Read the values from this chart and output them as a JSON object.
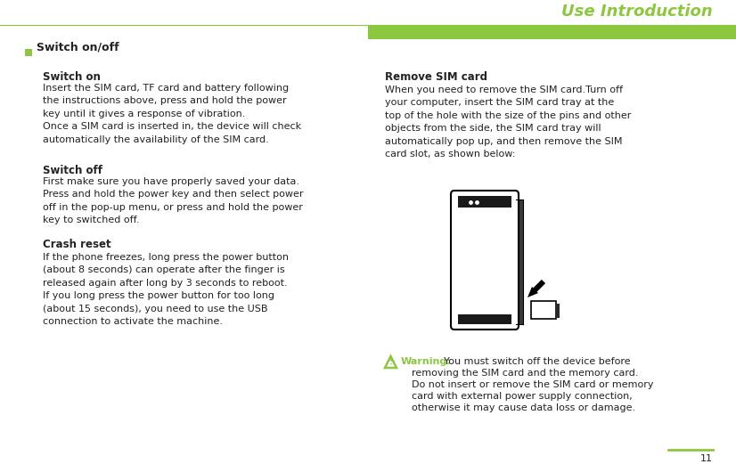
{
  "title": "Use Introduction",
  "title_color": "#8DC63F",
  "header_bar_color": "#8DC63F",
  "bg_color": "#FFFFFF",
  "page_number": "11",
  "bullet_color": "#8DC63F",
  "section1_bullet": "Switch on/off",
  "sub1_title": "Switch on",
  "sub1_text": "Insert the SIM card, TF card and battery following\nthe instructions above, press and hold the power\nkey until it gives a response of vibration.\nOnce a SIM card is inserted in, the device will check\nautomatically the availability of the SIM card.",
  "sub2_title": "Switch off",
  "sub2_text": "First make sure you have properly saved your data.\nPress and hold the power key and then select power\noff in the pop-up menu, or press and hold the power\nkey to switched off.",
  "sub3_title": "Crash reset",
  "sub3_text": "If the phone freezes, long press the power button\n(about 8 seconds) can operate after the finger is\nreleased again after long by 3 seconds to reboot.\nIf you long press the power button for too long\n(about 15 seconds), you need to use the USB\nconnection to activate the machine.",
  "right_title": "Remove SIM card",
  "right_text": "When you need to remove the SIM card.Turn off\nyour computer, insert the SIM card tray at the\ntop of the hole with the size of the pins and other\nobjects from the side, the SIM card tray will\nautomatically pop up, and then remove the SIM\ncard slot, as shown below:",
  "warning_label": "Warning:",
  "warning_text_inline": " You must switch off the device before\nremoving the SIM card and the memory card.\nDo not insert or remove the SIM card or memory\ncard with external power supply connection,\notherwise it may cause data loss or damage.",
  "warning_color": "#8DC63F",
  "text_color": "#222222",
  "font_size_title": 13,
  "font_size_section": 9,
  "font_size_sub": 8.5,
  "font_size_body": 8,
  "font_size_page": 8,
  "col_split": 0.5
}
